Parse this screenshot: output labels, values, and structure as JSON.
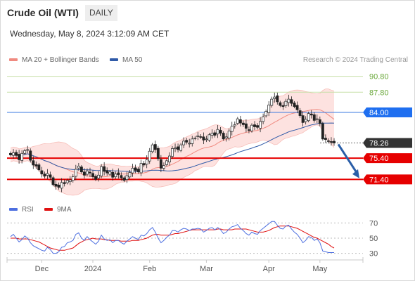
{
  "header": {
    "title": "Crude Oil (WTI)",
    "timeframe": "DAILY",
    "datetime": "Wednesday, May 8, 2024 3:12:09 AM CET"
  },
  "legend": {
    "ma20": {
      "label": "MA 20 + Bollinger Bands",
      "color": "#f08a80"
    },
    "ma50": {
      "label": "MA 50",
      "color": "#2f5aa8"
    },
    "rsi": {
      "label": "RSI",
      "color": "#4d6fe0"
    },
    "ma9": {
      "label": "9MA",
      "color": "#e01010"
    }
  },
  "credit": "Research © 2024 Trading Central",
  "chart_data": [
    {
      "type": "candlestick",
      "title": "Crude Oil (WTI)",
      "ylim": [
        68.8,
        92.6
      ],
      "x_labels": [
        "Dec",
        "2024",
        "Feb",
        "Mar",
        "Apr",
        "May"
      ],
      "levels": [
        {
          "value": 90.8,
          "label": "90.80",
          "style": "text",
          "color": "#6aa83a",
          "line": "#c7e0a8"
        },
        {
          "value": 87.8,
          "label": "87.80",
          "style": "text",
          "color": "#6aa83a",
          "line": "#c7e0a8"
        },
        {
          "value": 84.0,
          "label": "84.00",
          "style": "box",
          "color": "#1f6ff0",
          "line": "#3a7ae0"
        },
        {
          "value": 78.26,
          "label": "78.26",
          "style": "box",
          "color": "#333333",
          "line": "dotted"
        },
        {
          "value": 75.4,
          "label": "75.40",
          "style": "box",
          "color": "#e60000",
          "line": "#e60000"
        },
        {
          "value": 71.4,
          "label": "71.40",
          "style": "box",
          "color": "#e60000",
          "line": "#e60000"
        }
      ],
      "close": [
        76.0,
        76.4,
        75.9,
        75.1,
        76.3,
        76.8,
        77.0,
        75.0,
        74.1,
        73.9,
        73.2,
        72.4,
        72.0,
        72.5,
        71.8,
        70.4,
        70.1,
        69.9,
        70.8,
        70.6,
        71.2,
        71.3,
        71.9,
        73.3,
        73.9,
        72.8,
        72.2,
        73.0,
        72.6,
        71.9,
        71.4,
        72.2,
        73.8,
        72.9,
        72.6,
        72.8,
        71.8,
        72.4,
        72.3,
        71.7,
        71.2,
        72.1,
        72.7,
        73.5,
        73.1,
        72.8,
        74.4,
        74.1,
        75.1,
        76.7,
        77.9,
        77.0,
        75.3,
        73.5,
        74.0,
        74.9,
        75.8,
        77.2,
        77.3,
        77.0,
        77.9,
        78.6,
        78.4,
        78.2,
        79.0,
        79.2,
        79.6,
        79.4,
        78.8,
        79.0,
        79.8,
        80.1,
        79.7,
        80.8,
        80.1,
        79.0,
        79.4,
        80.5,
        81.4,
        81.7,
        82.8,
        82.0,
        81.7,
        81.0,
        80.6,
        81.6,
        81.3,
        81.2,
        82.3,
        83.2,
        84.2,
        85.4,
        86.5,
        86.9,
        86.0,
        85.3,
        85.1,
        86.1,
        86.5,
        85.7,
        85.1,
        84.5,
        83.4,
        82.1,
        82.7,
        83.8,
        83.5,
        82.5,
        82.8,
        81.9,
        79.0,
        78.9,
        78.6,
        78.5,
        78.26
      ]
    },
    {
      "type": "line",
      "title": "RSI",
      "ylim": [
        25,
        75
      ],
      "y_ticks": [
        30,
        50,
        70
      ],
      "series": [
        {
          "name": "RSI",
          "values": [
            52,
            55,
            50,
            45,
            48,
            53,
            50,
            44,
            40,
            38,
            36,
            34,
            33,
            38,
            35,
            30,
            30,
            32,
            38,
            39,
            44,
            45,
            47,
            55,
            57,
            50,
            47,
            52,
            48,
            45,
            42,
            46,
            54,
            49,
            47,
            48,
            44,
            47,
            47,
            44,
            42,
            46,
            49,
            52,
            50,
            48,
            54,
            53,
            56,
            61,
            64,
            58,
            50,
            44,
            47,
            51,
            54,
            60,
            60,
            58,
            61,
            63,
            62,
            60,
            62,
            62,
            63,
            62,
            58,
            60,
            63,
            64,
            61,
            64,
            61,
            56,
            58,
            62,
            65,
            66,
            68,
            63,
            60,
            56,
            54,
            58,
            56,
            55,
            60,
            63,
            66,
            69,
            72,
            72,
            67,
            63,
            62,
            66,
            67,
            62,
            58,
            55,
            50,
            44,
            47,
            52,
            51,
            47,
            49,
            44,
            33,
            32,
            31,
            31,
            31
          ]
        },
        {
          "name": "9MA",
          "values": [
            50,
            50,
            50,
            49,
            49,
            49,
            49,
            48,
            47,
            46,
            45,
            43,
            41,
            39,
            37,
            36,
            35,
            34,
            34,
            34,
            35,
            36,
            37,
            40,
            43,
            45,
            47,
            48,
            49,
            50,
            49,
            49,
            49,
            48,
            48,
            47,
            47,
            47,
            47,
            46,
            46,
            46,
            46,
            47,
            47,
            47,
            48,
            49,
            50,
            52,
            54,
            55,
            55,
            54,
            54,
            54,
            54,
            55,
            56,
            56,
            57,
            58,
            59,
            60,
            61,
            61,
            61,
            61,
            61,
            61,
            61,
            61,
            61,
            62,
            62,
            61,
            61,
            61,
            61,
            62,
            62,
            62,
            62,
            62,
            61,
            60,
            59,
            58,
            58,
            58,
            59,
            60,
            62,
            64,
            65,
            66,
            66,
            66,
            66,
            65,
            64,
            63,
            61,
            59,
            57,
            55,
            53,
            51,
            50,
            48,
            46,
            44,
            42,
            39,
            37
          ]
        }
      ]
    }
  ]
}
